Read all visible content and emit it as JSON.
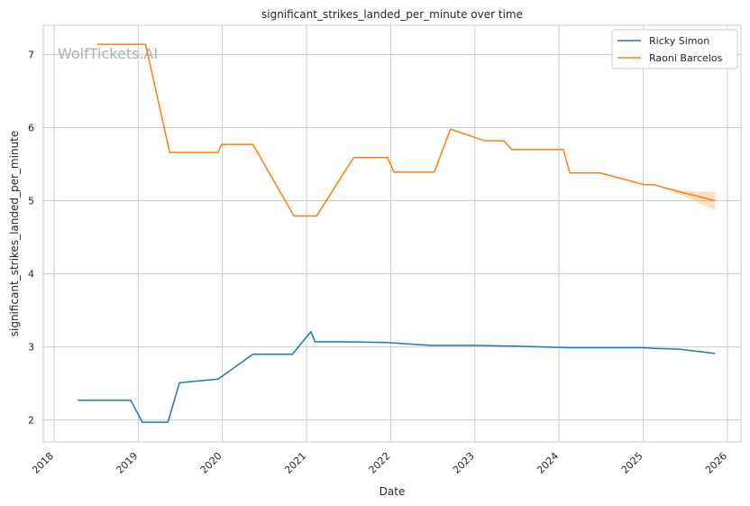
{
  "chart_data": {
    "type": "line",
    "title": "significant_strikes_landed_per_minute over time",
    "xlabel": "Date",
    "ylabel": "significant_strikes_landed_per_minute",
    "watermark": "WolfTickets.AI",
    "xlim": [
      "2017-11-15",
      "2026-03-01"
    ],
    "ylim": [
      1.7,
      7.4
    ],
    "x_ticks": [
      "2018",
      "2019",
      "2020",
      "2021",
      "2022",
      "2023",
      "2024",
      "2025",
      "2026"
    ],
    "y_ticks": [
      "2",
      "3",
      "4",
      "5",
      "6",
      "7"
    ],
    "grid": true,
    "legend_position": "top-right",
    "series": [
      {
        "name": "Ricky Simon",
        "color": "#1f77b4",
        "points": [
          [
            "2018-04-14",
            2.27
          ],
          [
            "2018-11-30",
            2.27
          ],
          [
            "2019-01-19",
            1.97
          ],
          [
            "2019-05-10",
            1.97
          ],
          [
            "2019-06-29",
            2.51
          ],
          [
            "2019-12-14",
            2.56
          ],
          [
            "2020-05-13",
            2.9
          ],
          [
            "2020-10-31",
            2.9
          ],
          [
            "2021-01-20",
            3.21
          ],
          [
            "2021-02-06",
            3.07
          ],
          [
            "2021-06-26",
            3.07
          ],
          [
            "2021-12-18",
            3.06
          ],
          [
            "2022-06-25",
            3.02
          ],
          [
            "2023-01-14",
            3.02
          ],
          [
            "2023-07-15",
            3.01
          ],
          [
            "2024-02-10",
            2.99
          ],
          [
            "2024-06-29",
            2.99
          ],
          [
            "2025-01-04",
            2.99
          ],
          [
            "2025-02-15",
            2.98
          ],
          [
            "2025-06-07",
            2.97
          ],
          [
            "2025-11-08",
            2.91
          ]
        ]
      },
      {
        "name": "Raoni Barcelos",
        "color": "#ff7f0e",
        "points": [
          [
            "2018-07-07",
            7.14
          ],
          [
            "2019-02-02",
            7.14
          ],
          [
            "2019-05-18",
            5.66
          ],
          [
            "2019-12-14",
            5.66
          ],
          [
            "2019-12-28",
            5.77
          ],
          [
            "2020-05-13",
            5.77
          ],
          [
            "2020-11-07",
            4.79
          ],
          [
            "2021-02-13",
            4.79
          ],
          [
            "2021-07-24",
            5.59
          ],
          [
            "2021-12-18",
            5.59
          ],
          [
            "2022-01-15",
            5.39
          ],
          [
            "2022-07-09",
            5.39
          ],
          [
            "2022-09-17",
            5.98
          ],
          [
            "2023-02-11",
            5.82
          ],
          [
            "2023-05-06",
            5.82
          ],
          [
            "2023-06-10",
            5.7
          ],
          [
            "2023-12-21",
            5.7
          ],
          [
            "2024-01-20",
            5.7
          ],
          [
            "2024-02-17",
            5.38
          ],
          [
            "2024-06-29",
            5.38
          ],
          [
            "2025-01-04",
            5.22
          ],
          [
            "2025-02-15",
            5.22
          ],
          [
            "2025-06-21",
            5.11
          ],
          [
            "2025-11-08",
            5.0
          ]
        ],
        "band": [
          [
            "2025-02-15",
            5.22,
            5.22
          ],
          [
            "2025-06-21",
            5.07,
            5.13
          ],
          [
            "2025-11-08",
            4.87,
            5.12
          ]
        ]
      }
    ]
  }
}
